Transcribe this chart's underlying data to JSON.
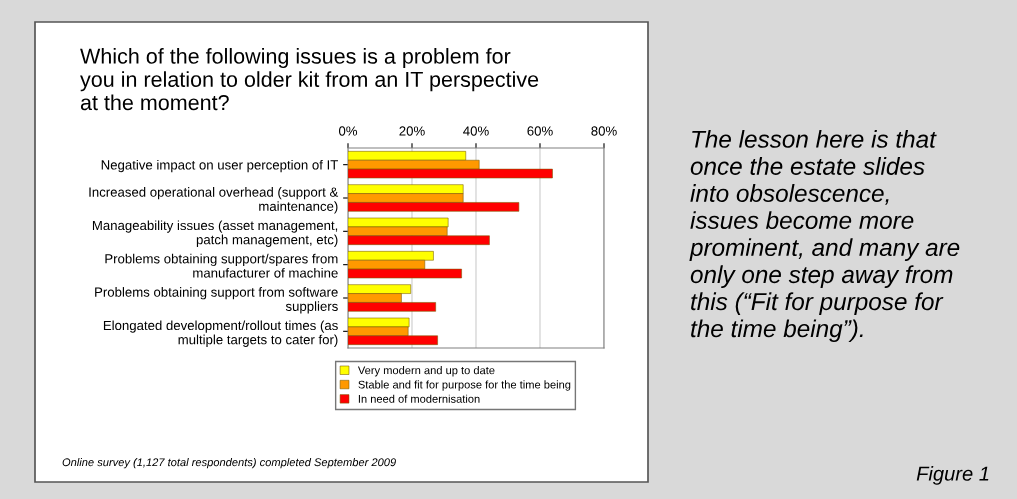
{
  "chart_data": {
    "type": "bar",
    "orientation": "horizontal",
    "title": "Which of the following issues is a problem for\nyou in relation to older kit from an IT perspective\nat the moment?",
    "categories": [
      "Negative impact on user perception of IT",
      "Increased operational overhead (support &\nmaintenance)",
      "Manageability issues (asset management,\npatch management, etc)",
      "Problems obtaining support/spares from\nmanufacturer of machine",
      "Problems obtaining support from software\nsuppliers",
      "Elongated development/rollout times (as\nmultiple targets to cater for)"
    ],
    "series": [
      {
        "name": "Very modern and up to date",
        "color": "#ffff00",
        "values": [
          36.8,
          36.0,
          31.3,
          26.7,
          19.6,
          19.1
        ]
      },
      {
        "name": "Stable and fit for purpose for the time being",
        "color": "#ff9900",
        "values": [
          41.0,
          36.0,
          31.0,
          24.0,
          16.7,
          18.8
        ]
      },
      {
        "name": "In need of modernisation",
        "color": "#ff0000",
        "values": [
          63.9,
          53.4,
          44.2,
          35.5,
          27.4,
          28.0
        ]
      }
    ],
    "xlim": [
      0,
      80
    ],
    "xticks": [
      {
        "value": 0,
        "label": "0%"
      },
      {
        "value": 20,
        "label": "20%"
      },
      {
        "value": 40,
        "label": "40%"
      },
      {
        "value": 60,
        "label": "60%"
      },
      {
        "value": 80,
        "label": "80%"
      }
    ],
    "grid": "x",
    "legend": "bottom",
    "annotations": [
      "Online survey (1,127 total respondents) completed September 2009",
      "The lesson here is that\nonce the estate slides\ninto obsolescence,\nissues become more\nprominent, and many are\nonly one step away from\nthis (“Fit for purpose for\nthe time being”).",
      "Figure 1"
    ]
  }
}
